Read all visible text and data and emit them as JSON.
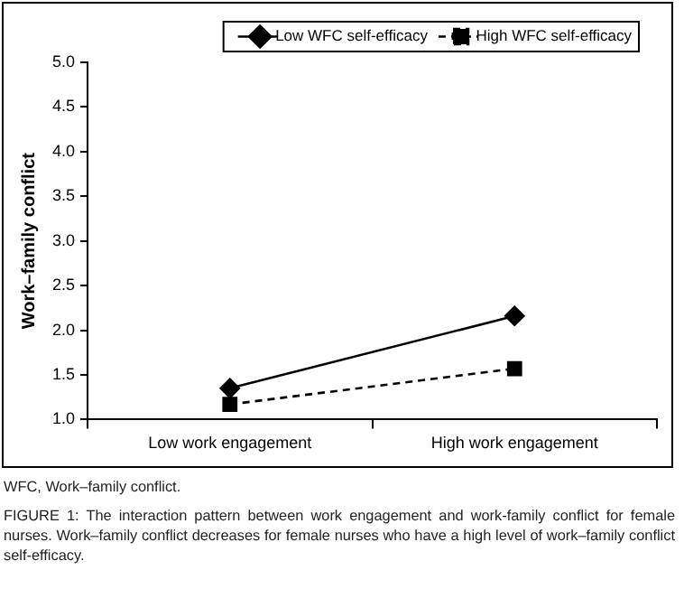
{
  "chart_data": {
    "type": "line",
    "ylabel": "Work–family conflict",
    "categories": [
      "Low work engagement",
      "High work engagement"
    ],
    "series": [
      {
        "name": "Low WFC self-efficacy",
        "color": "#000000",
        "values": [
          1.35,
          2.16
        ],
        "marker": "diamond",
        "line_style": "solid"
      },
      {
        "name": "High WFC self-efficacy",
        "color": "#000000",
        "values": [
          1.17,
          1.57
        ],
        "marker": "square",
        "line_style": "dashed"
      }
    ],
    "ylim": [
      1,
      5
    ],
    "yticks": [
      {
        "value": 1,
        "label": "1.0"
      },
      {
        "value": 1.5,
        "label": "1.5"
      },
      {
        "value": 2,
        "label": "2.0"
      },
      {
        "value": 2.5,
        "label": "2.5"
      },
      {
        "value": 3,
        "label": "3.0"
      },
      {
        "value": 3.5,
        "label": "3.5"
      },
      {
        "value": 4,
        "label": "4.0"
      },
      {
        "value": 4.5,
        "label": "4.5"
      },
      {
        "value": 5,
        "label": "5.0"
      }
    ],
    "grid": false,
    "legend": "top right",
    "annotations": [
      "WFC, Work–family conflict.",
      "FIGURE 1: The interaction pattern between work engagement and work-family conflict for female nurses.  Work–family conflict decreases for female nurses who have a high level of work–family conflict self-efficacy."
    ]
  }
}
